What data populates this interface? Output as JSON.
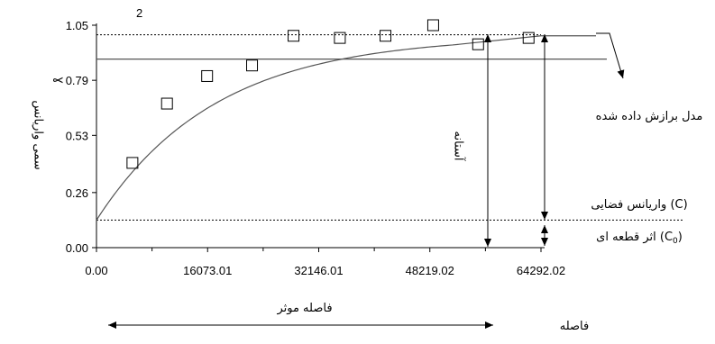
{
  "chart_data": {
    "type": "scatter",
    "title": "",
    "xlabel": "فاصله",
    "ylabel": "سمی واریانس",
    "small_label": "2",
    "ylabel_superscript": "ɣ",
    "xlim": [
      0,
      64292.02
    ],
    "ylim": [
      0,
      1.05
    ],
    "xticks": [
      "0.00",
      "16073.01",
      "32146.01",
      "48219.02",
      "64292.02"
    ],
    "xtick_values": [
      0,
      16073.01,
      32146.01,
      48219.02,
      64292.02
    ],
    "yticks": [
      "0.00",
      "0.26",
      "0.53",
      "0.79",
      "1.05"
    ],
    "ytick_values": [
      0,
      0.26,
      0.53,
      0.79,
      1.05
    ],
    "points": [
      {
        "x": 5200,
        "y": 0.4
      },
      {
        "x": 10200,
        "y": 0.68
      },
      {
        "x": 16000,
        "y": 0.81
      },
      {
        "x": 22500,
        "y": 0.86
      },
      {
        "x": 28500,
        "y": 1.0
      },
      {
        "x": 35200,
        "y": 0.99
      },
      {
        "x": 41800,
        "y": 1.0
      },
      {
        "x": 48700,
        "y": 1.05
      },
      {
        "x": 55200,
        "y": 0.96
      },
      {
        "x": 62500,
        "y": 0.99
      }
    ],
    "model": {
      "type": "exponential",
      "nugget": 0.13,
      "sill": 1.0,
      "range": 51500
    },
    "reference_lines": {
      "sill_dotted": 1.005,
      "horizontal_solid": 0.89,
      "nugget_dotted": 0.13
    },
    "grid": false,
    "annotations": {
      "fitted_model": "مدل برازش داده شده",
      "sill": "آستانه",
      "partial_sill": "واریانس فضایی (C)",
      "nugget_prefix": "اثر قطعه ای (C",
      "nugget_subscript": "0",
      "nugget_suffix": ")",
      "effective_range": "فاصله موثر",
      "distance": "فاصله"
    },
    "colors": {
      "axis": "#000000",
      "model": "#555555",
      "points": "#000000",
      "background": "#ffffff"
    }
  }
}
